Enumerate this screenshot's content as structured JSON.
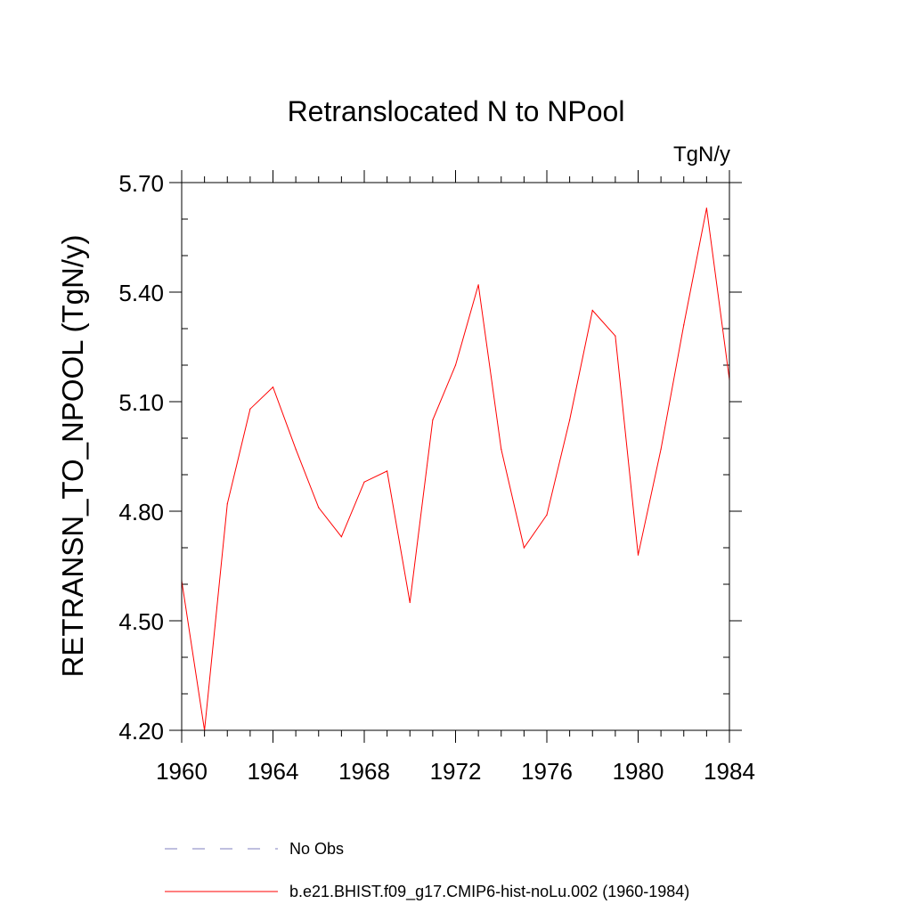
{
  "chart_data": {
    "type": "line",
    "title": "Retranslocated N to NPool",
    "units": "TgN/y",
    "ylabel": "RETRANSN_TO_NPOOL  (TgN/y)",
    "xlabel": "",
    "xlim": [
      1960,
      1984
    ],
    "ylim": [
      4.2,
      5.7
    ],
    "xticks": [
      1960,
      1964,
      1968,
      1972,
      1976,
      1980,
      1984
    ],
    "yticks": [
      "4.20",
      "4.50",
      "4.80",
      "5.10",
      "5.40",
      "5.70"
    ],
    "x": [
      1960,
      1961,
      1962,
      1963,
      1964,
      1965,
      1966,
      1967,
      1968,
      1969,
      1970,
      1971,
      1972,
      1973,
      1974,
      1975,
      1976,
      1977,
      1978,
      1979,
      1980,
      1981,
      1982,
      1983,
      1984
    ],
    "series": [
      {
        "name": "b.e21.BHIST.f09_g17.CMIP6-hist-noLu.002 (1960-1984)",
        "color": "#ff0000",
        "style": "solid",
        "values": [
          4.61,
          4.2,
          4.82,
          5.08,
          5.14,
          4.97,
          4.81,
          4.73,
          4.88,
          4.91,
          4.55,
          5.05,
          5.2,
          5.42,
          4.97,
          4.7,
          4.79,
          5.05,
          5.35,
          5.28,
          4.68,
          4.97,
          5.31,
          5.63,
          5.16
        ]
      }
    ],
    "legend": [
      {
        "label": "No Obs",
        "color": "#7f7fbf",
        "style": "dashed"
      },
      {
        "label": "b.e21.BHIST.f09_g17.CMIP6-hist-noLu.002 (1960-1984)",
        "color": "#ff0000",
        "style": "solid"
      }
    ],
    "legend_position": "bottom",
    "grid": false
  }
}
